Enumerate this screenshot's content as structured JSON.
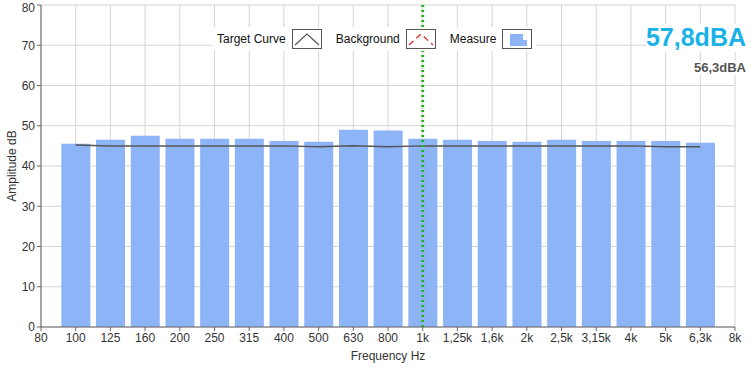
{
  "chart_data": {
    "type": "bar",
    "x_label": "Frequency Hz",
    "y_label": "Amplitude dB",
    "categories": [
      "80",
      "100",
      "125",
      "160",
      "200",
      "250",
      "315",
      "400",
      "500",
      "630",
      "800",
      "1k",
      "1,25k",
      "1,6k",
      "2k",
      "2,5k",
      "3,15k",
      "4k",
      "5k",
      "6,3k",
      "8k"
    ],
    "series": [
      {
        "name": "Target Curve",
        "type": "line",
        "color": "#555555",
        "line_style": "solid",
        "values": [
          null,
          45.2,
          45,
          45,
          45,
          45,
          45,
          45,
          44.8,
          45,
          44.8,
          45,
          45,
          45,
          45,
          45,
          45,
          45,
          44.8,
          44.8,
          null
        ]
      },
      {
        "name": "Background",
        "type": "line",
        "color": "#e02020",
        "line_style": "dashed",
        "values": [
          null,
          null,
          null,
          null,
          null,
          null,
          null,
          null,
          null,
          null,
          null,
          null,
          null,
          null,
          null,
          null,
          null,
          null,
          null,
          null,
          null
        ]
      },
      {
        "name": "Measure",
        "type": "bar",
        "color": "#8db4f7",
        "values": [
          null,
          45.5,
          46.5,
          47.5,
          46.8,
          46.8,
          46.8,
          46.2,
          46,
          49,
          48.8,
          46.8,
          46.5,
          46.2,
          46,
          46.5,
          46.2,
          46.2,
          46.2,
          45.8,
          null
        ]
      }
    ],
    "annotations": [
      {
        "text": "57,8dBA",
        "color": "#1ab2e8"
      },
      {
        "text": "56,3dBA",
        "color": "#555555"
      },
      {
        "x": "1k",
        "color": "#22b522",
        "line_style": "dotted"
      }
    ],
    "ylim": [
      0,
      80
    ],
    "yticks": [
      0,
      10,
      20,
      30,
      40,
      50,
      60,
      70,
      80
    ],
    "grid": true,
    "legend": "top"
  }
}
